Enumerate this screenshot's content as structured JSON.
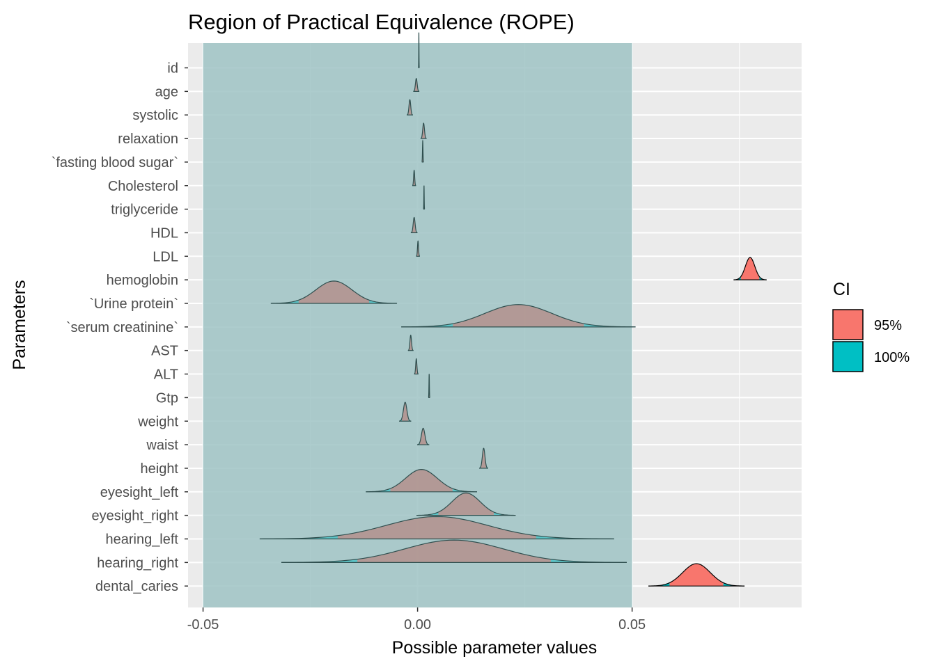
{
  "chart_data": {
    "type": "area",
    "title": "Region of Practical Equivalence (ROPE)",
    "xlabel": "Possible parameter values",
    "ylabel": "Parameters",
    "xlim": [
      -0.0535,
      0.0895
    ],
    "x_ticks": [
      {
        "value": -0.05,
        "label": "-0.05"
      },
      {
        "value": 0.0,
        "label": "0.00"
      },
      {
        "value": 0.05,
        "label": "0.05"
      }
    ],
    "rope": [
      -0.05,
      0.05
    ],
    "rope_color": "#9fc3c4",
    "panel_background": "#ebebeb",
    "grid": true,
    "legend": {
      "title": "CI",
      "position": "right",
      "entries": [
        {
          "label": "95%",
          "color": "#f8766d"
        },
        {
          "label": "100%",
          "color": "#00bfc4"
        }
      ]
    },
    "parameters": [
      {
        "name": "id",
        "center": 0.0003,
        "sd": 3e-05,
        "height": 1.5
      },
      {
        "name": "age",
        "center": -0.0003,
        "sd": 0.0002,
        "height": 0.55
      },
      {
        "name": "systolic",
        "center": -0.0018,
        "sd": 0.0002,
        "height": 0.65
      },
      {
        "name": "relaxation",
        "center": 0.0014,
        "sd": 0.0002,
        "height": 0.65
      },
      {
        "name": "`fasting blood sugar`",
        "center": 0.0012,
        "sd": 6e-05,
        "height": 0.9
      },
      {
        "name": "Cholesterol",
        "center": -0.0008,
        "sd": 0.00012,
        "height": 0.65
      },
      {
        "name": "triglyceride",
        "center": 0.0015,
        "sd": 4e-05,
        "height": 1.0
      },
      {
        "name": "HDL",
        "center": -0.0008,
        "sd": 0.00022,
        "height": 0.65
      },
      {
        "name": "LDL",
        "center": 0.0001,
        "sd": 0.00012,
        "height": 0.65
      },
      {
        "name": "hemoglobin",
        "center": 0.0775,
        "sd": 0.0011,
        "height": 0.95
      },
      {
        "name": "`Urine protein`",
        "center": -0.0195,
        "sd": 0.0042,
        "height": 0.95
      },
      {
        "name": "`serum creatinine`",
        "center": 0.0235,
        "sd": 0.0078,
        "height": 0.95
      },
      {
        "name": "AST",
        "center": -0.0016,
        "sd": 0.00018,
        "height": 0.65
      },
      {
        "name": "ALT",
        "center": -0.0003,
        "sd": 0.00014,
        "height": 0.65
      },
      {
        "name": "Gtp",
        "center": 0.0027,
        "sd": 5e-05,
        "height": 1.0
      },
      {
        "name": "weight",
        "center": -0.0029,
        "sd": 0.0004,
        "height": 0.8
      },
      {
        "name": "waist",
        "center": 0.0013,
        "sd": 0.0004,
        "height": 0.7
      },
      {
        "name": "height",
        "center": 0.0154,
        "sd": 0.0003,
        "height": 0.85
      },
      {
        "name": "eyesight_left",
        "center": 0.0009,
        "sd": 0.0037,
        "height": 0.95
      },
      {
        "name": "eyesight_right",
        "center": 0.0113,
        "sd": 0.0033,
        "height": 0.95
      },
      {
        "name": "hearing_left",
        "center": 0.0045,
        "sd": 0.0118,
        "height": 0.95
      },
      {
        "name": "hearing_right",
        "center": 0.0085,
        "sd": 0.0115,
        "height": 0.95
      },
      {
        "name": "dental_caries",
        "center": 0.065,
        "sd": 0.0032,
        "height": 0.95
      }
    ]
  }
}
